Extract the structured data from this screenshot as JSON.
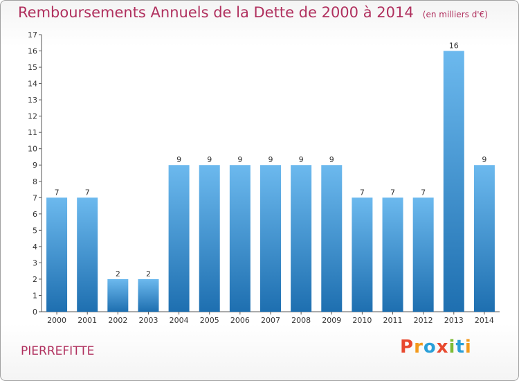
{
  "title": "Remboursements Annuels de la Dette de 2000 à 2014",
  "unit_note": "(en milliers d'€)",
  "commune": "PIERREFITTE",
  "logo": {
    "text": "Proxiti",
    "colors": [
      "#e8492f",
      "#f39a1c",
      "#2a9fd8",
      "#e8492f",
      "#7dbb35",
      "#2a9fd8",
      "#f39a1c"
    ]
  },
  "colors": {
    "bar_top": "#6cb9ee",
    "bar_bottom": "#1e6fb0",
    "title": "#b0305e"
  },
  "chart_data": {
    "type": "bar",
    "title": "Remboursements Annuels de la Dette de 2000 à 2014",
    "xlabel": "",
    "ylabel": "",
    "ylim": [
      0,
      17
    ],
    "grid": false,
    "categories": [
      "2000",
      "2001",
      "2002",
      "2003",
      "2004",
      "2005",
      "2006",
      "2007",
      "2008",
      "2009",
      "2010",
      "2011",
      "2012",
      "2013",
      "2014"
    ],
    "values": [
      7,
      7,
      2,
      2,
      9,
      9,
      9,
      9,
      9,
      9,
      7,
      7,
      7,
      16,
      9
    ],
    "data_labels": [
      "7",
      "7",
      "2",
      "2",
      "9",
      "9",
      "9",
      "9",
      "9",
      "9",
      "7",
      "7",
      "7",
      "16",
      "9"
    ],
    "y_ticks": [
      "0",
      "1",
      "2",
      "3",
      "4",
      "5",
      "6",
      "7",
      "8",
      "9",
      "10",
      "11",
      "12",
      "13",
      "14",
      "15",
      "16",
      "17"
    ]
  }
}
